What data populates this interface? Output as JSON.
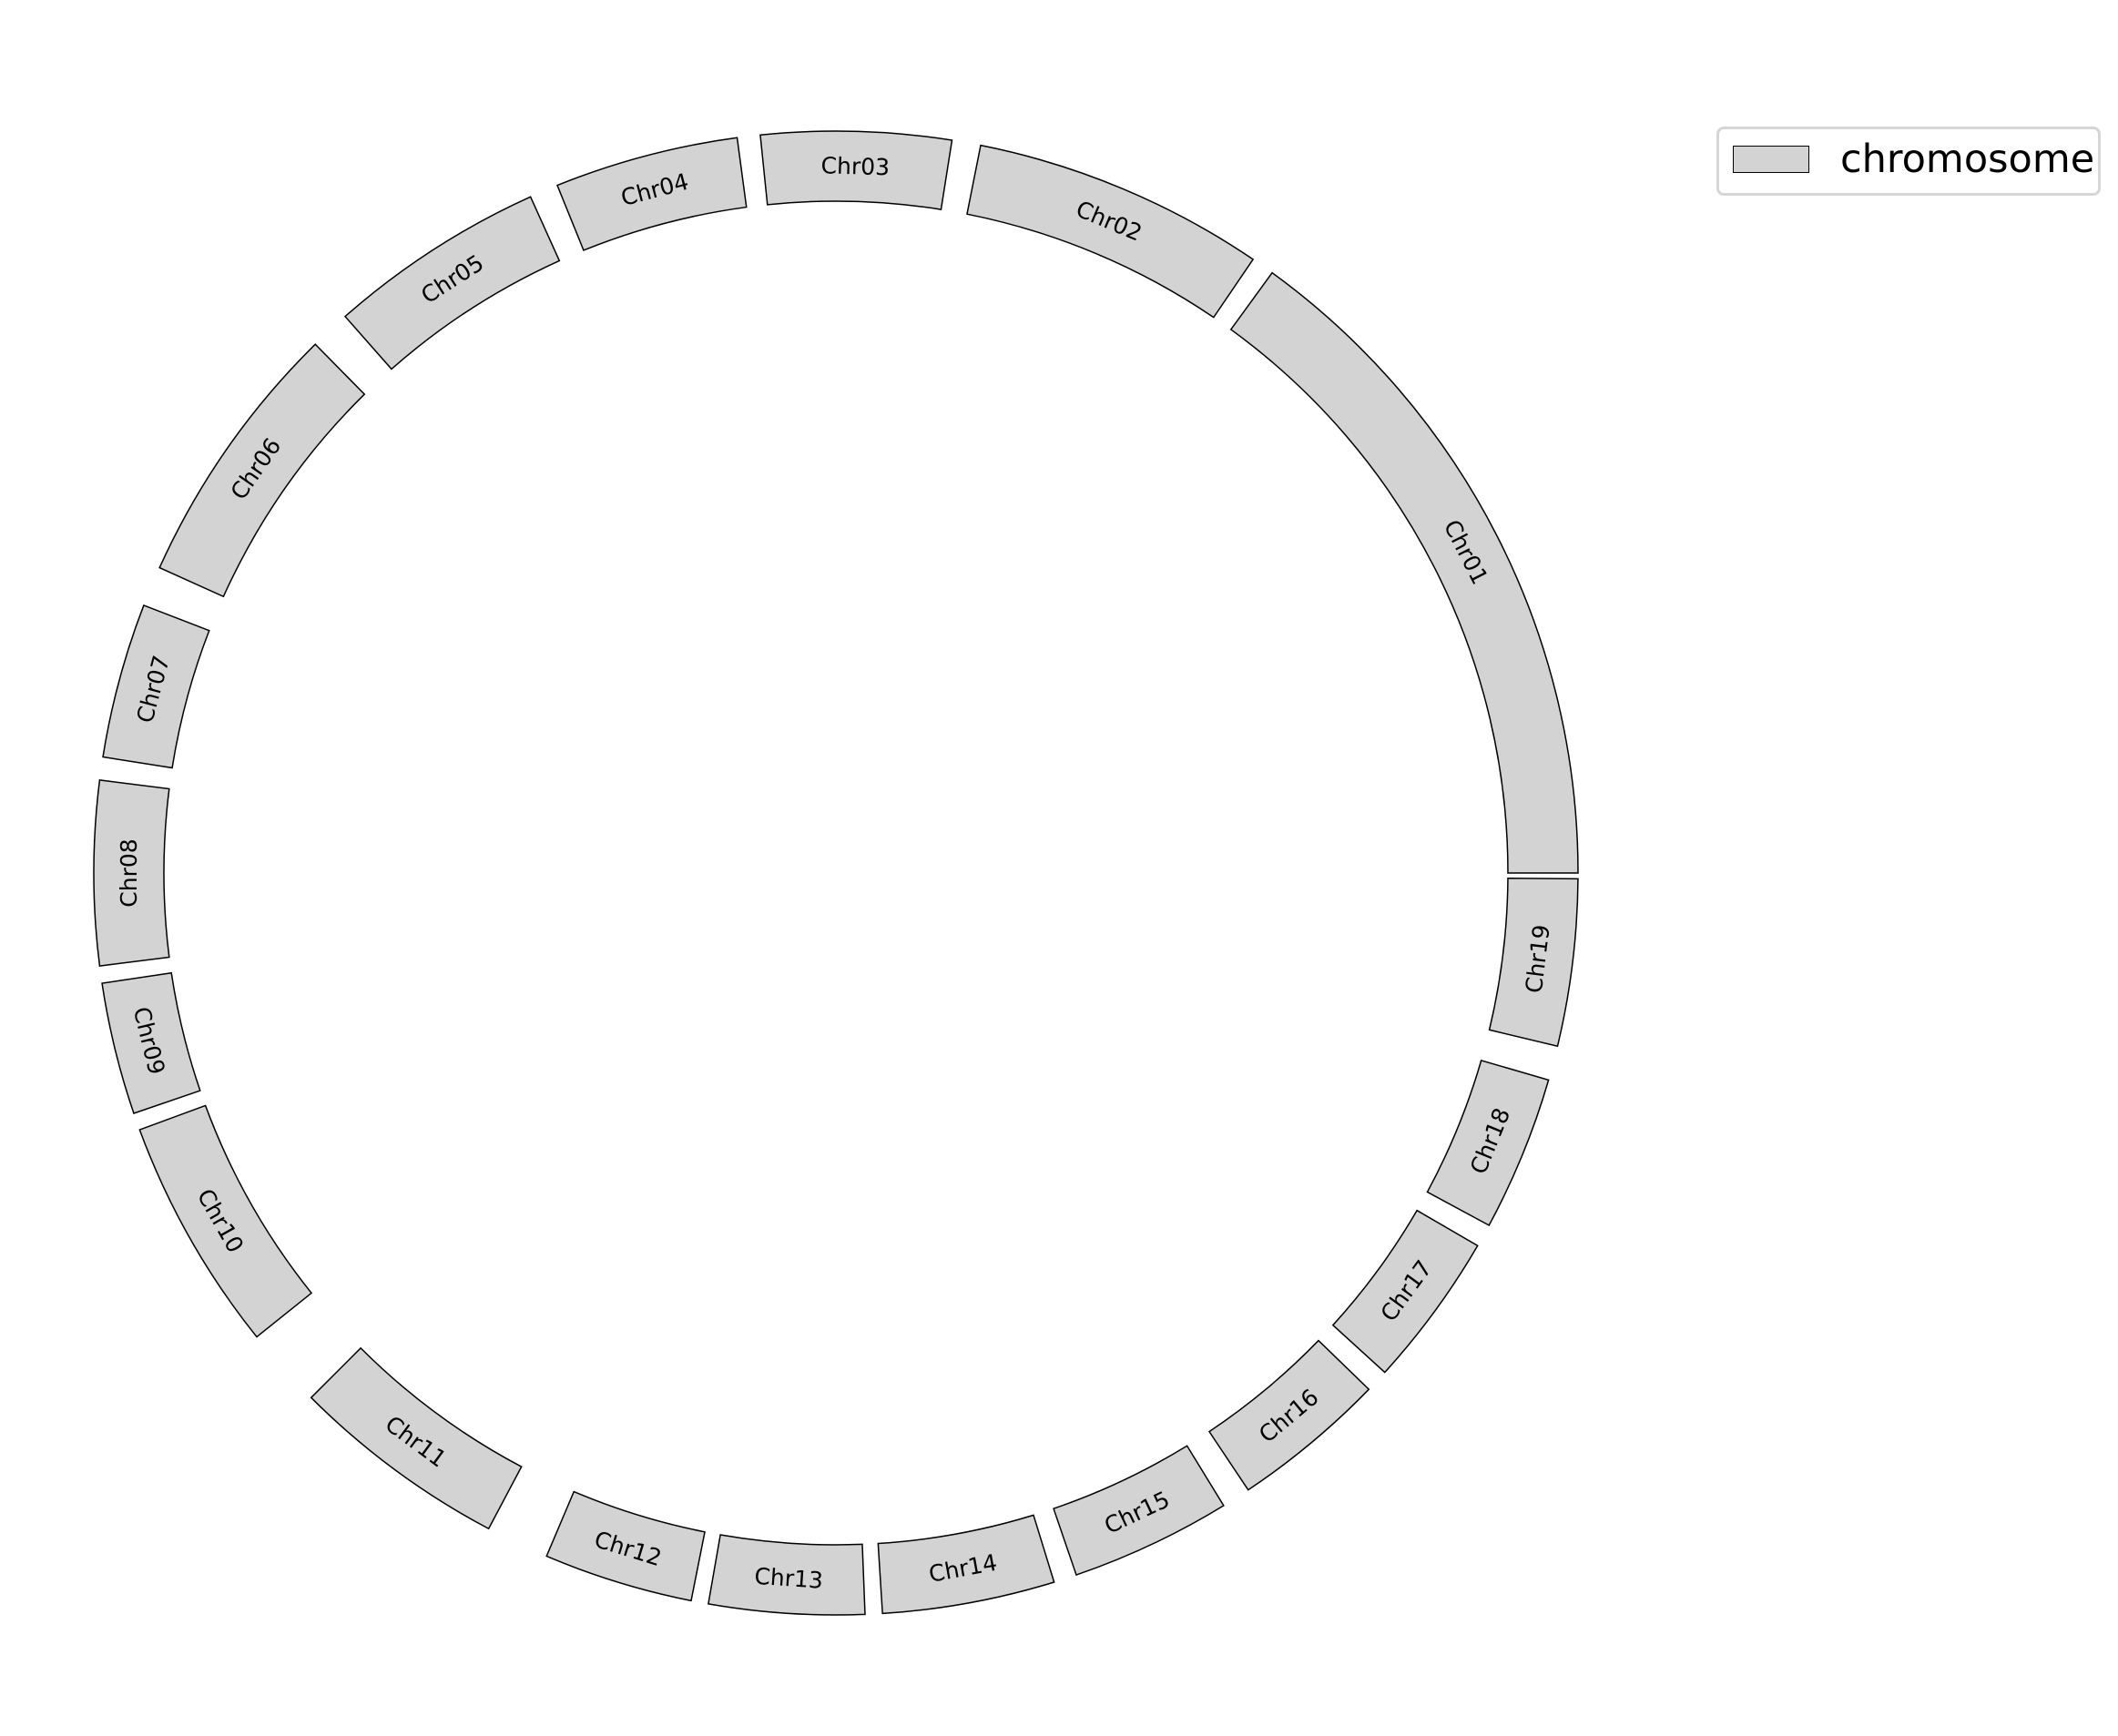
{
  "colors": {
    "chromosome_fill": "#d3d3d3",
    "outline": "#000000"
  },
  "legend": {
    "label": "chromosome"
  },
  "chromosomes": [
    {
      "label": "Chr01",
      "start": 0,
      "end": 60.0
    },
    {
      "label": "Chr02",
      "start": 62.0,
      "end": 87.5
    },
    {
      "label": "Chr03",
      "start": 90.0,
      "end": 106.5
    },
    {
      "label": "Chr04",
      "start": 108.5,
      "end": 124.5
    },
    {
      "label": "Chr05",
      "start": 127.0,
      "end": 146.0
    },
    {
      "label": "Chr06",
      "start": 149.5,
      "end": 173.0
    },
    {
      "label": "Chr07",
      "start": 176.5,
      "end": 190.0
    },
    {
      "label": "Chr08",
      "start": 192.0,
      "end": 208.0
    },
    {
      "label": "Chr09",
      "start": 209.5,
      "end": 221.0
    },
    {
      "label": "Chr10",
      "start": 222.5,
      "end": 243.0
    },
    {
      "label": "Chr11",
      "start": 250.0,
      "end": 269.0
    },
    {
      "label": "Chr12",
      "start": 274.5,
      "end": 287.5
    },
    {
      "label": "Chr13",
      "start": 289.0,
      "end": 302.5
    },
    {
      "label": "Chr14",
      "start": 304.0,
      "end": 319.0
    },
    {
      "label": "Chr15",
      "start": 321.0,
      "end": 335.0
    },
    {
      "label": "Chr16",
      "start": 337.5,
      "end": 351.0
    },
    {
      "label": "Chr17",
      "start": 353.0,
      "end": 366.5
    },
    {
      "label": "Chr18",
      "start": 368.5,
      "end": 382.0
    },
    {
      "label": "Chr19",
      "start": 385.0,
      "end": 399.5
    }
  ]
}
